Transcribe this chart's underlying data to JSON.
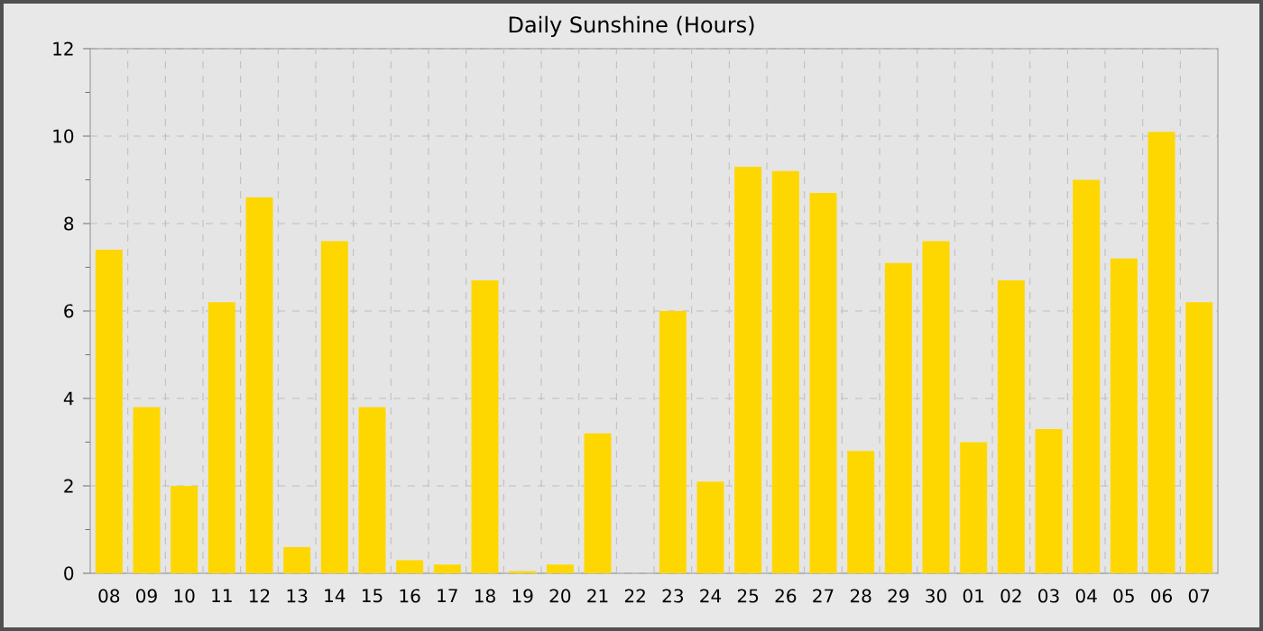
{
  "chart_data": {
    "type": "bar",
    "title": "Daily Sunshine (Hours)",
    "categories": [
      "08",
      "09",
      "10",
      "11",
      "12",
      "13",
      "14",
      "15",
      "16",
      "17",
      "18",
      "19",
      "20",
      "21",
      "22",
      "23",
      "24",
      "25",
      "26",
      "27",
      "28",
      "29",
      "30",
      "01",
      "02",
      "03",
      "04",
      "05",
      "06",
      "07"
    ],
    "values": [
      7.4,
      3.8,
      2.0,
      6.2,
      8.6,
      0.6,
      7.6,
      3.8,
      0.3,
      0.2,
      6.7,
      0.05,
      0.2,
      3.2,
      0,
      6.0,
      2.1,
      9.3,
      9.2,
      8.7,
      2.8,
      7.1,
      7.6,
      3.0,
      6.7,
      3.3,
      9.0,
      7.2,
      10.1,
      6.2
    ],
    "color": "#ffd700",
    "ylim": [
      0,
      12
    ],
    "yticks": [
      0,
      2,
      4,
      6,
      8,
      10,
      12
    ],
    "grid": true
  }
}
